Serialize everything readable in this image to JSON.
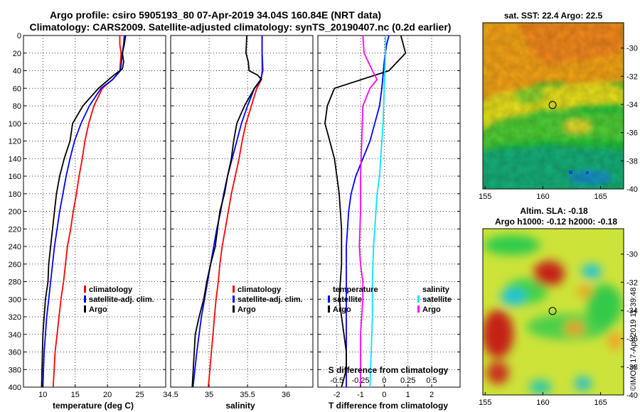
{
  "header": {
    "title_line1": "Argo profile: csiro 5905193_80 07-Apr-2019 34.04S 160.84E (NRT data)",
    "title_line2": "Climatology: CARS2009. Satellite-adjusted climatology: synTS_20190407.nc (0.2d earlier)"
  },
  "watermark": "©IMOS 17-Apr-2019 11:39:48",
  "colors": {
    "climatology": "#ff0000",
    "satellite": "#0000ff",
    "argo": "#000000",
    "sat_t": "#00e5ff",
    "argo_s": "#ff00ff"
  },
  "chart_data": [
    {
      "type": "line",
      "id": "temperature",
      "xlabel": "temperature (deg C)",
      "xlim": [
        7,
        29
      ],
      "xticks": [
        10,
        15,
        20,
        25
      ],
      "ylim": [
        400,
        0
      ],
      "yticks": [
        0,
        20,
        40,
        60,
        80,
        100,
        120,
        140,
        160,
        180,
        200,
        220,
        240,
        260,
        280,
        300,
        320,
        340,
        360,
        380,
        400
      ],
      "ytick_labels": [
        "0",
        "20",
        "40",
        "60",
        "80",
        "100",
        "120",
        "140",
        "160",
        "180",
        "200",
        "220",
        "240",
        "260",
        "280",
        "300",
        "320",
        "340",
        "360",
        "380",
        "400"
      ],
      "legend": [
        "climatology",
        "satellite-adj. clim.",
        "Argo"
      ],
      "series": [
        {
          "name": "climatology",
          "color": "#ff0000",
          "x": [
            21.9,
            21.9,
            22.1,
            21.9,
            20.8,
            19.2,
            17.9,
            17.1,
            16.5,
            16.1,
            15.6,
            15.2,
            14.7,
            14.3,
            13.8,
            13.5,
            13.2,
            12.8,
            12.5,
            12.2,
            11.9,
            11.6
          ],
          "y": [
            0,
            10,
            20,
            40,
            50,
            60,
            80,
            100,
            120,
            140,
            160,
            180,
            200,
            220,
            240,
            260,
            280,
            300,
            320,
            340,
            360,
            400
          ]
        },
        {
          "name": "satellite-adj. clim.",
          "color": "#0000ff",
          "x": [
            22.6,
            22.5,
            22.3,
            22.0,
            20.8,
            19.0,
            17.2,
            15.9,
            14.9,
            14.2,
            13.6,
            13.1,
            12.6,
            12.2,
            11.8,
            11.5,
            11.2,
            10.9,
            10.6,
            10.4,
            10.2,
            10.0
          ],
          "y": [
            0,
            10,
            20,
            40,
            50,
            60,
            80,
            100,
            120,
            140,
            160,
            180,
            200,
            220,
            240,
            260,
            280,
            300,
            320,
            340,
            360,
            400
          ]
        },
        {
          "name": "Argo",
          "color": "#000000",
          "x": [
            22.8,
            22.6,
            22.3,
            22.5,
            22.3,
            21.0,
            18.6,
            16.2,
            14.6,
            14.2,
            13.3,
            12.6,
            12.1,
            11.8,
            11.5,
            11.2,
            10.9,
            10.8,
            10.4,
            10.2,
            10.0,
            9.8
          ],
          "y": [
            0,
            10,
            20,
            30,
            38,
            45,
            60,
            80,
            100,
            120,
            140,
            160,
            180,
            200,
            220,
            240,
            260,
            280,
            300,
            320,
            340,
            400
          ]
        }
      ]
    },
    {
      "type": "line",
      "id": "salinity",
      "xlabel": "salinity",
      "xlim": [
        34.5,
        36.35
      ],
      "xticks": [
        34.5,
        35,
        35.5,
        36
      ],
      "xtick_labels": [
        "34.5",
        "35",
        "35.5",
        "36"
      ],
      "ylim": [
        400,
        0
      ],
      "legend": [
        "climatology",
        "satellite-adj. clim.",
        "Argo"
      ],
      "series": [
        {
          "name": "climatology",
          "color": "#ff0000",
          "x": [
            35.69,
            35.69,
            35.69,
            35.68,
            35.62,
            35.55,
            35.48,
            35.43,
            35.39,
            35.34,
            35.29,
            35.25,
            35.21,
            35.17,
            35.14,
            35.12,
            35.09,
            35.07,
            35.05,
            35.03,
            34.99
          ],
          "y": [
            0,
            20,
            40,
            50,
            60,
            80,
            100,
            120,
            140,
            160,
            180,
            200,
            220,
            240,
            260,
            280,
            300,
            320,
            340,
            360,
            400
          ]
        },
        {
          "name": "satellite-adj. clim.",
          "color": "#0000ff",
          "x": [
            35.69,
            35.69,
            35.7,
            35.67,
            35.59,
            35.5,
            35.42,
            35.36,
            35.3,
            35.24,
            35.19,
            35.15,
            35.1,
            35.06,
            35.02,
            34.98,
            34.94,
            34.9,
            34.87,
            34.84,
            34.79
          ],
          "y": [
            0,
            20,
            40,
            50,
            60,
            80,
            100,
            120,
            140,
            160,
            180,
            200,
            220,
            240,
            260,
            280,
            300,
            320,
            340,
            360,
            400
          ]
        },
        {
          "name": "Argo",
          "color": "#000000",
          "x": [
            35.49,
            35.48,
            35.51,
            35.52,
            35.63,
            35.68,
            35.59,
            35.46,
            35.36,
            35.32,
            35.29,
            35.24,
            35.2,
            35.14,
            35.11,
            35.08,
            35.02,
            34.97,
            34.93,
            34.87,
            34.82,
            34.78
          ],
          "y": [
            0,
            20,
            30,
            40,
            45,
            50,
            60,
            80,
            100,
            120,
            140,
            160,
            180,
            200,
            220,
            240,
            260,
            280,
            300,
            320,
            340,
            400
          ]
        }
      ]
    },
    {
      "type": "line",
      "id": "differences",
      "xlabel": "T difference from climatology",
      "xlim": [
        -2.8,
        3.2
      ],
      "xticks": [
        -2,
        -1,
        0,
        1,
        2
      ],
      "xtick_labels": [
        "-2",
        "-1",
        "0",
        "1",
        "2"
      ],
      "top_axis_label": "S difference from climatology",
      "top_ticks": [
        -0.5,
        -0.25,
        0,
        0.25,
        0.5
      ],
      "top_tick_labels": [
        "-0.5",
        "-0.25",
        "0",
        "0.25",
        "0.5"
      ],
      "legend_temperature_title": "temperature",
      "legend_salinity_title": "salinity",
      "legend_items": [
        "satellite",
        "Argo"
      ],
      "series": [
        {
          "name": "T satellite",
          "color": "#0000ff",
          "x": [
            0.2,
            0.1,
            0,
            -0.1,
            -0.2,
            -0.4,
            -0.6,
            -0.9,
            -1.2,
            -1.4,
            -1.5,
            -1.55,
            -1.6,
            -1.6,
            -1.6,
            -1.6,
            -1.6,
            -1.6,
            -1.6
          ],
          "y": [
            0,
            10,
            30,
            60,
            80,
            100,
            120,
            140,
            160,
            180,
            200,
            220,
            240,
            260,
            280,
            300,
            320,
            360,
            400
          ]
        },
        {
          "name": "T Argo",
          "color": "#000000",
          "x": [
            0.7,
            0.8,
            0.9,
            0.2,
            -2.1,
            -2.4,
            -2.5,
            -2.3,
            -2.1,
            -2.0,
            -1.9,
            -1.8,
            -1.8,
            -1.9,
            -1.8,
            -1.7,
            -1.6,
            -1.6,
            -1.8
          ],
          "y": [
            0,
            10,
            20,
            40,
            60,
            80,
            100,
            120,
            140,
            160,
            180,
            220,
            260,
            300,
            320,
            340,
            360,
            380,
            400
          ]
        },
        {
          "name": "S satellite",
          "color": "#00e5ff",
          "x": [
            0.05,
            0.05,
            0,
            -0.05,
            -0.1,
            -0.15,
            -0.2,
            -0.3,
            -0.35,
            -0.4,
            -0.45,
            -0.5,
            -0.5,
            -0.55,
            -0.6
          ],
          "y": [
            0,
            20,
            60,
            100,
            120,
            140,
            160,
            180,
            200,
            220,
            240,
            280,
            320,
            360,
            400
          ]
        },
        {
          "name": "S Argo",
          "color": "#ff00ff",
          "x": [
            -0.9,
            -0.85,
            -0.5,
            -0.3,
            -0.6,
            -0.9,
            -0.95,
            -1.0,
            -1.0,
            -1.05,
            -1.0,
            -0.9,
            -0.9,
            -1.0,
            -1.0,
            -1.0
          ],
          "y": [
            0,
            20,
            40,
            50,
            60,
            80,
            120,
            160,
            200,
            240,
            260,
            280,
            300,
            340,
            370,
            400
          ]
        }
      ]
    },
    {
      "type": "heatmap",
      "id": "sst_map",
      "title": "sat. SST: 22.4 Argo: 22.5",
      "xlim": [
        154.8,
        167
      ],
      "ylim": [
        -40,
        -28.2
      ],
      "xticks": [
        155,
        160,
        165
      ],
      "xtick_labels": [
        "155",
        "160",
        "165"
      ],
      "yticks": [
        -30,
        -32,
        -34,
        -36,
        -38,
        -40
      ],
      "ytick_labels": [
        "-30",
        "-32",
        "-34",
        "-36",
        "-38",
        "-40"
      ],
      "marker": {
        "lon": 160.84,
        "lat": -34.04
      }
    },
    {
      "type": "heatmap",
      "id": "sla_map",
      "title_line1": "Altim. SLA: -0.18",
      "title_line2": "Argo h1000: -0.12 h2000: -0.18",
      "xlim": [
        154.8,
        167
      ],
      "ylim": [
        -40,
        -28.2
      ],
      "xticks": [
        155,
        160,
        165
      ],
      "xtick_labels": [
        "155",
        "160",
        "165"
      ],
      "yticks": [
        -30,
        -32,
        -34,
        -36,
        -38,
        -40
      ],
      "ytick_labels": [
        "-30",
        "-32",
        "-34",
        "-36",
        "-38",
        "-40"
      ],
      "marker": {
        "lon": 160.84,
        "lat": -34.04
      }
    }
  ]
}
